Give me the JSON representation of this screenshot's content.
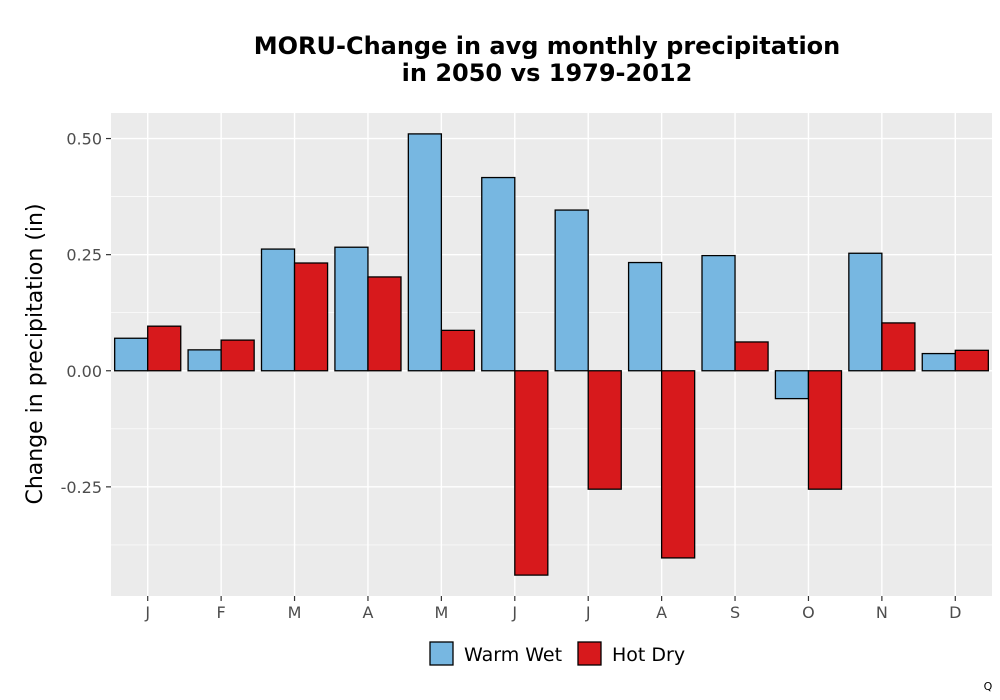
{
  "chart_data": {
    "type": "bar",
    "title": [
      "MORU-Change in avg monthly precipitation",
      "in 2050 vs 1979-2012"
    ],
    "xlabel": "",
    "ylabel": "Change in precipitation (in)",
    "categories": [
      "J",
      "F",
      "M",
      "A",
      "M",
      "J",
      "J",
      "A",
      "S",
      "O",
      "N",
      "D"
    ],
    "series": [
      {
        "name": "Warm Wet",
        "color": "#77b7e1",
        "values": [
          0.07,
          0.045,
          0.262,
          0.266,
          0.51,
          0.416,
          0.346,
          0.233,
          0.248,
          -0.06,
          0.253,
          0.037
        ]
      },
      {
        "name": "Hot Dry",
        "color": "#d7191c",
        "values": [
          0.096,
          0.066,
          0.232,
          0.202,
          0.087,
          -0.44,
          -0.255,
          -0.403,
          0.062,
          -0.255,
          0.103,
          0.044
        ]
      }
    ],
    "ylim": [
      -0.485,
      0.555
    ],
    "yticks": [
      0.5,
      0.25,
      0.0,
      -0.25
    ],
    "ytick_labels": [
      "0.50",
      "0.25",
      "0.00",
      "-0.25"
    ],
    "grid": true,
    "legend_position": "bottom",
    "background": "#ebebeb"
  },
  "corner_mark": "Q"
}
